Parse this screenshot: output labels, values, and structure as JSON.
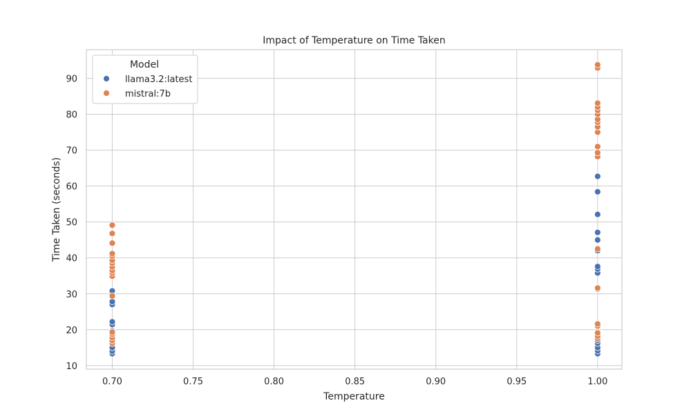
{
  "chart_data": {
    "type": "scatter",
    "title": "Impact of Temperature on Time Taken",
    "xlabel": "Temperature",
    "ylabel": "Time Taken (seconds)",
    "xlim": [
      0.684,
      1.015
    ],
    "ylim": [
      9,
      98
    ],
    "xticks": [
      0.7,
      0.75,
      0.8,
      0.85,
      0.9,
      0.95,
      1.0
    ],
    "xtick_labels": [
      "0.70",
      "0.75",
      "0.80",
      "0.85",
      "0.90",
      "0.95",
      "1.00"
    ],
    "yticks": [
      10,
      20,
      30,
      40,
      50,
      60,
      70,
      80,
      90
    ],
    "ytick_labels": [
      "10",
      "20",
      "30",
      "40",
      "50",
      "60",
      "70",
      "80",
      "90"
    ],
    "grid": true,
    "legend": {
      "title": "Model",
      "position": "top-left"
    },
    "series": [
      {
        "name": "llama3.2:latest",
        "color": "#4c72b0",
        "points": [
          [
            0.7,
            13.3
          ],
          [
            0.7,
            14.0
          ],
          [
            0.7,
            15.0
          ],
          [
            0.7,
            16.2
          ],
          [
            0.7,
            17.3
          ],
          [
            0.7,
            18.2
          ],
          [
            0.7,
            19.6
          ],
          [
            0.7,
            21.4
          ],
          [
            0.7,
            22.2
          ],
          [
            0.7,
            27.0
          ],
          [
            0.7,
            27.8
          ],
          [
            0.7,
            30.8
          ],
          [
            1.0,
            13.3
          ],
          [
            1.0,
            14.1
          ],
          [
            1.0,
            15.0
          ],
          [
            1.0,
            16.2
          ],
          [
            1.0,
            17.0
          ],
          [
            1.0,
            18.0
          ],
          [
            1.0,
            35.8
          ],
          [
            1.0,
            36.9
          ],
          [
            1.0,
            37.6
          ],
          [
            1.0,
            42.0
          ],
          [
            1.0,
            42.6
          ],
          [
            1.0,
            45.0
          ],
          [
            1.0,
            47.1
          ],
          [
            1.0,
            52.1
          ],
          [
            1.0,
            58.4
          ],
          [
            1.0,
            62.7
          ]
        ]
      },
      {
        "name": "mistral:7b",
        "color": "#dd8452",
        "points": [
          [
            0.7,
            16.2
          ],
          [
            0.7,
            17.0
          ],
          [
            0.7,
            17.8
          ],
          [
            0.7,
            18.7
          ],
          [
            0.7,
            19.3
          ],
          [
            0.7,
            29.4
          ],
          [
            0.7,
            34.9
          ],
          [
            0.7,
            35.8
          ],
          [
            0.7,
            36.5
          ],
          [
            0.7,
            37.5
          ],
          [
            0.7,
            38.5
          ],
          [
            0.7,
            39.3
          ],
          [
            0.7,
            40.5
          ],
          [
            0.7,
            41.2
          ],
          [
            0.7,
            44.1
          ],
          [
            0.7,
            46.8
          ],
          [
            0.7,
            49.1
          ],
          [
            1.0,
            17.5
          ],
          [
            1.0,
            18.2
          ],
          [
            1.0,
            19.1
          ],
          [
            1.0,
            21.0
          ],
          [
            1.0,
            21.6
          ],
          [
            1.0,
            31.3
          ],
          [
            1.0,
            31.6
          ],
          [
            1.0,
            42.5
          ],
          [
            1.0,
            68.2
          ],
          [
            1.0,
            69.3
          ],
          [
            1.0,
            71.0
          ],
          [
            1.0,
            75.0
          ],
          [
            1.0,
            76.5
          ],
          [
            1.0,
            77.8
          ],
          [
            1.0,
            78.6
          ],
          [
            1.0,
            80.0
          ],
          [
            1.0,
            81.1
          ],
          [
            1.0,
            82.0
          ],
          [
            1.0,
            83.1
          ],
          [
            1.0,
            92.9
          ],
          [
            1.0,
            93.8
          ]
        ]
      }
    ]
  }
}
